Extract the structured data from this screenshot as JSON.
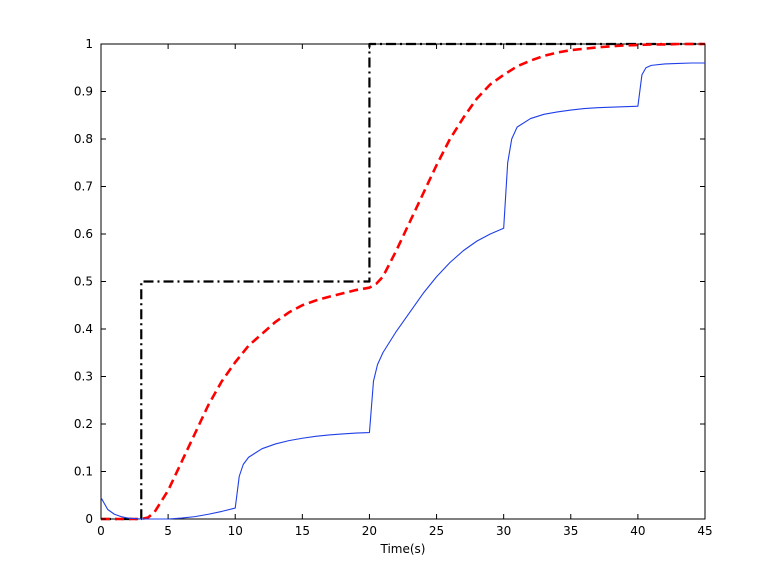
{
  "chart_data": {
    "type": "line",
    "xlabel": "Time(s)",
    "ylabel": "",
    "xlim": [
      0,
      45
    ],
    "ylim": [
      0,
      1
    ],
    "xticks": [
      0,
      5,
      10,
      15,
      20,
      25,
      30,
      35,
      40,
      45
    ],
    "yticks": [
      0,
      0.1,
      0.2,
      0.3,
      0.4,
      0.5,
      0.6,
      0.7,
      0.8,
      0.9,
      1
    ],
    "xtick_labels": [
      "0",
      "5",
      "10",
      "15",
      "20",
      "25",
      "30",
      "35",
      "40",
      "45"
    ],
    "ytick_labels": [
      "0",
      "0.1",
      "0.2",
      "0.3",
      "0.4",
      "0.5",
      "0.6",
      "0.7",
      "0.8",
      "0.9",
      "1"
    ],
    "grid": false,
    "legend": "none",
    "series": [
      {
        "style": "dash-dot",
        "color": "#000000",
        "x": [
          0,
          3,
          3,
          20,
          20,
          45
        ],
        "y": [
          0,
          0,
          0.5,
          0.5,
          1.0,
          1.0
        ]
      },
      {
        "style": "dashed",
        "color": "#ff0000",
        "x": [
          0,
          2,
          3,
          3.5,
          4,
          5,
          6,
          7,
          8,
          9,
          10,
          11,
          12,
          13,
          14,
          15,
          16,
          17,
          18,
          19,
          20,
          20.5,
          21,
          22,
          23,
          24,
          25,
          26,
          27,
          28,
          29,
          30,
          31,
          32,
          33,
          34,
          35,
          36,
          37,
          38,
          39,
          40,
          41,
          42,
          43,
          44,
          45
        ],
        "y": [
          0,
          0,
          0,
          0.003,
          0.015,
          0.06,
          0.12,
          0.18,
          0.24,
          0.29,
          0.33,
          0.365,
          0.39,
          0.415,
          0.435,
          0.45,
          0.46,
          0.468,
          0.475,
          0.482,
          0.487,
          0.495,
          0.51,
          0.565,
          0.625,
          0.685,
          0.745,
          0.8,
          0.845,
          0.885,
          0.915,
          0.935,
          0.953,
          0.965,
          0.975,
          0.982,
          0.987,
          0.99,
          0.993,
          0.995,
          0.997,
          0.998,
          0.999,
          0.999,
          1.0,
          1.0,
          1.0
        ]
      },
      {
        "style": "solid",
        "color": "#1f3fe8",
        "x": [
          0,
          0.5,
          1,
          1.5,
          2,
          2.5,
          3,
          4,
          5,
          6,
          7,
          8,
          9,
          10,
          10.3,
          10.6,
          11,
          12,
          13,
          14,
          15,
          16,
          17,
          18,
          19,
          20,
          20.3,
          20.6,
          21,
          22,
          23,
          24,
          25,
          26,
          27,
          28,
          29,
          30,
          30.3,
          30.6,
          31,
          32,
          33,
          34,
          35,
          36,
          37,
          38,
          39,
          40,
          40.3,
          40.6,
          41,
          42,
          43,
          44,
          45
        ],
        "y": [
          0.045,
          0.02,
          0.01,
          0.005,
          0.002,
          0.001,
          0.0,
          0.0,
          0.0,
          0.002,
          0.005,
          0.01,
          0.016,
          0.023,
          0.09,
          0.115,
          0.13,
          0.148,
          0.158,
          0.165,
          0.17,
          0.174,
          0.177,
          0.179,
          0.181,
          0.182,
          0.29,
          0.325,
          0.35,
          0.395,
          0.435,
          0.475,
          0.51,
          0.54,
          0.565,
          0.585,
          0.6,
          0.612,
          0.75,
          0.8,
          0.825,
          0.843,
          0.852,
          0.857,
          0.861,
          0.864,
          0.866,
          0.867,
          0.868,
          0.869,
          0.935,
          0.95,
          0.955,
          0.958,
          0.959,
          0.96,
          0.96
        ]
      }
    ]
  }
}
